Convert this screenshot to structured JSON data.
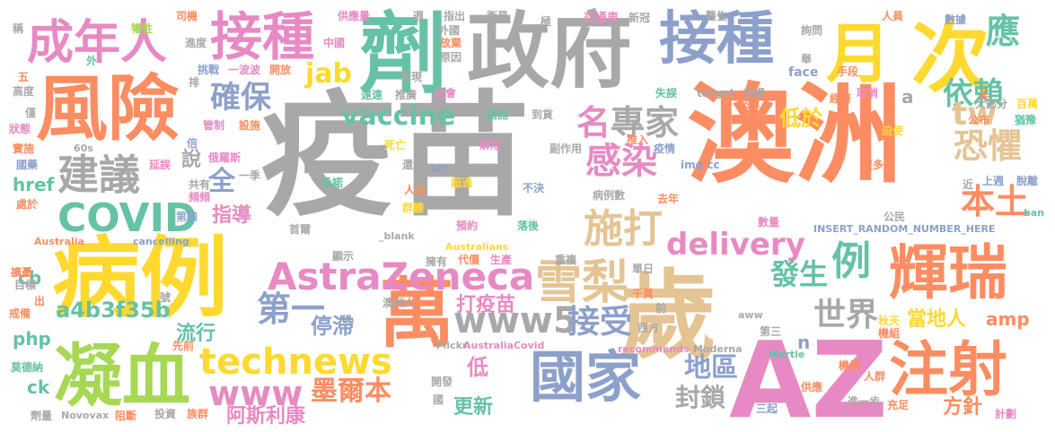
{
  "words": [
    {
      "text": "疫苗",
      "color": "#a8a8a8",
      "vertical": false
    },
    {
      "text": "澳洲",
      "color": "#fc8d62",
      "vertical": false
    },
    {
      "text": "政府",
      "color": "#a8a8a8",
      "vertical": false
    },
    {
      "text": "AZ",
      "color": "#e78ac3",
      "vertical": false
    },
    {
      "text": "病例",
      "color": "#ffd92f",
      "vertical": false
    },
    {
      "text": "風險",
      "color": "#fc8d62",
      "vertical": false
    },
    {
      "text": "歲",
      "color": "#e5c494",
      "vertical": false
    },
    {
      "text": "劑",
      "color": "#66c2a5",
      "vertical": false
    },
    {
      "text": "接種",
      "color": "#e78ac3",
      "vertical": false
    },
    {
      "text": "接種",
      "color": "#8da0cb",
      "vertical": false
    },
    {
      "text": "凝血",
      "color": "#a6d854",
      "vertical": false
    },
    {
      "text": "萬",
      "color": "#fc8d62",
      "vertical": false
    },
    {
      "text": "輝瑞",
      "color": "#fc8d62",
      "vertical": false
    },
    {
      "text": "次",
      "color": "#ffd92f",
      "vertical": false
    },
    {
      "text": "月",
      "color": "#ffd92f",
      "vertical": false
    },
    {
      "text": "國家",
      "color": "#8da0cb",
      "vertical": false
    },
    {
      "text": "注射",
      "color": "#fc8d62",
      "vertical": false
    },
    {
      "text": "成年人",
      "color": "#e78ac3",
      "vertical": false
    },
    {
      "text": "AstraZeneca",
      "color": "#e78ac3",
      "vertical": false
    },
    {
      "text": "雪梨",
      "color": "#e5c494",
      "vertical": false
    },
    {
      "text": "COVID",
      "color": "#66c2a5",
      "vertical": false
    },
    {
      "text": "建議",
      "color": "#a8a8a8",
      "vertical": false
    },
    {
      "text": "施打",
      "color": "#e5c494",
      "vertical": false
    },
    {
      "text": "technews",
      "color": "#ffd92f",
      "vertical": false
    },
    {
      "text": "www5",
      "color": "#a8a8a8",
      "vertical": false
    },
    {
      "text": "delivery",
      "color": "#e78ac3",
      "vertical": false
    },
    {
      "text": "www",
      "color": "#e78ac3",
      "vertical": false
    },
    {
      "text": "確保",
      "color": "#8da0cb",
      "vertical": false
    },
    {
      "text": "vaccine",
      "color": "#66c2a5",
      "vertical": false
    },
    {
      "text": "感染",
      "color": "#e78ac3",
      "vertical": false
    },
    {
      "text": "名",
      "color": "#e78ac3",
      "vertical": false
    },
    {
      "text": "專家",
      "color": "#a8a8a8",
      "vertical": false
    },
    {
      "text": "依賴",
      "color": "#66c2a5",
      "vertical": false
    },
    {
      "text": "應",
      "color": "#66c2a5",
      "vertical": false
    },
    {
      "text": "tw",
      "color": "#e5c494",
      "vertical": false
    },
    {
      "text": "恐懼",
      "color": "#e5c494",
      "vertical": false
    },
    {
      "text": "本土",
      "color": "#fc8d62",
      "vertical": false
    },
    {
      "text": "例",
      "color": "#66c2a5",
      "vertical": false
    },
    {
      "text": "發生",
      "color": "#66c2a5",
      "vertical": false
    },
    {
      "text": "第一",
      "color": "#8da0cb",
      "vertical": false
    },
    {
      "text": "接受",
      "color": "#8da0cb",
      "vertical": false
    },
    {
      "text": "世界",
      "color": "#a8a8a8",
      "vertical": false
    },
    {
      "text": "停滯",
      "color": "#8da0cb",
      "vertical": false
    },
    {
      "text": "墨爾本",
      "color": "#fc8d62",
      "vertical": false
    },
    {
      "text": "地區",
      "color": "#8da0cb",
      "vertical": false
    },
    {
      "text": "封鎖",
      "color": "#a8a8a8",
      "vertical": false
    },
    {
      "text": "jab",
      "color": "#ffd92f",
      "vertical": false
    },
    {
      "text": "全",
      "color": "#8da0cb",
      "vertical": false
    },
    {
      "text": "說",
      "color": "#a8a8a8",
      "vertical": false
    },
    {
      "text": "指導",
      "color": "#e78ac3",
      "vertical": false
    },
    {
      "text": "低於",
      "color": "#ffd92f",
      "vertical": false
    },
    {
      "text": "當地人",
      "color": "#ffd92f",
      "vertical": false
    },
    {
      "text": "a4b3f35b",
      "color": "#66c2a5",
      "vertical": false
    },
    {
      "text": "流行",
      "color": "#66c2a5",
      "vertical": false
    },
    {
      "text": "打疫苗",
      "color": "#e78ac3",
      "vertical": false
    },
    {
      "text": "阿斯利康",
      "color": "#e78ac3",
      "vertical": false
    },
    {
      "text": "更新",
      "color": "#66c2a5",
      "vertical": false
    },
    {
      "text": "低",
      "color": "#e78ac3",
      "vertical": false
    },
    {
      "text": "方針",
      "color": "#fc8d62",
      "vertical": false
    },
    {
      "text": "href",
      "color": "#66c2a5",
      "vertical": false
    },
    {
      "text": "cb",
      "color": "#66c2a5",
      "vertical": false
    },
    {
      "text": "php",
      "color": "#66c2a5",
      "vertical": false
    },
    {
      "text": "ck",
      "color": "#66c2a5",
      "vertical": false
    },
    {
      "text": "amp",
      "color": "#fc8d62",
      "vertical": false
    },
    {
      "text": "n",
      "color": "#8da0cb",
      "vertical": false
    },
    {
      "text": "a",
      "color": "#a8a8a8",
      "vertical": false
    },
    {
      "text": "INSERT_RANDOM_NUMBER_HERE",
      "color": "#8da0cb",
      "vertical": false
    },
    {
      "text": "_blank",
      "color": "#a8a8a8",
      "vertical": false
    },
    {
      "text": "Australians",
      "color": "#ffd92f",
      "vertical": false
    },
    {
      "text": "Australia",
      "color": "#fc8d62",
      "vertical": false
    },
    {
      "text": "cancelling",
      "color": "#8da0cb",
      "vertical": false
    },
    {
      "text": "AustraliaCovid",
      "color": "#e78ac3",
      "vertical": false
    },
    {
      "text": "recommends",
      "color": "#e78ac3",
      "vertical": false
    },
    {
      "text": "Moderna",
      "color": "#a8a8a8",
      "vertical": false
    },
    {
      "text": "Novovax",
      "color": "#a8a8a8",
      "vertical": false
    },
    {
      "text": "Mertie",
      "color": "#66c2a5",
      "vertical": false
    },
    {
      "text": "Flickr",
      "color": "#a8a8a8",
      "vertical": false
    },
    {
      "text": "face",
      "color": "#8da0cb",
      "vertical": false
    },
    {
      "text": "target",
      "color": "#a8a8a8",
      "vertical": false
    },
    {
      "text": "img cc",
      "color": "#8da0cb",
      "vertical": false
    },
    {
      "text": "src",
      "color": "#8da0cb",
      "vertical": false
    },
    {
      "text": "60s",
      "color": "#a8a8a8",
      "vertical": false
    },
    {
      "text": "aww",
      "color": "#a8a8a8",
      "vertical": false
    },
    {
      "text": "ban",
      "color": "#66c2a5",
      "vertical": false
    },
    {
      "text": "數據",
      "color": "#8da0cb",
      "vertical": false
    },
    {
      "text": "人員",
      "color": "#fc8d62",
      "vertical": false
    },
    {
      "text": "醫生",
      "color": "#a8a8a8",
      "vertical": false
    },
    {
      "text": "新冠",
      "color": "#a8a8a8",
      "vertical": false
    },
    {
      "text": "交通車",
      "color": "#e78ac3",
      "vertical": false
    },
    {
      "text": "衛星",
      "color": "#a8a8a8",
      "vertical": false
    },
    {
      "text": "指出",
      "color": "#a8a8a8",
      "vertical": false
    },
    {
      "text": "供應量",
      "color": "#e78ac3",
      "vertical": false
    },
    {
      "text": "司機",
      "color": "#fc8d62",
      "vertical": false
    },
    {
      "text": "犧牲",
      "color": "#a6d854",
      "vertical": false
    },
    {
      "text": "進度",
      "color": "#a8a8a8",
      "vertical": false
    },
    {
      "text": "挑戰",
      "color": "#8da0cb",
      "vertical": false
    },
    {
      "text": "一波波",
      "color": "#e78ac3",
      "vertical": false
    },
    {
      "text": "開放",
      "color": "#fc8d62",
      "vertical": false
    },
    {
      "text": "發現",
      "color": "#a8a8a8",
      "vertical": false
    },
    {
      "text": "放棄",
      "color": "#fc8d62",
      "vertical": false
    },
    {
      "text": "原因",
      "color": "#a8a8a8",
      "vertical": false
    },
    {
      "text": "社會",
      "color": "#e78ac3",
      "vertical": false
    },
    {
      "text": "推廣",
      "color": "#a8a8a8",
      "vertical": false
    },
    {
      "text": "遠遠",
      "color": "#66c2a5",
      "vertical": false
    },
    {
      "text": "設施",
      "color": "#fc8d62",
      "vertical": false
    },
    {
      "text": "管制",
      "color": "#e78ac3",
      "vertical": false
    },
    {
      "text": "措施",
      "color": "#66c2a5",
      "vertical": false
    },
    {
      "text": "到貨",
      "color": "#a8a8a8",
      "vertical": false
    },
    {
      "text": "死亡",
      "color": "#ffd92f",
      "vertical": false
    },
    {
      "text": "解除",
      "color": "#e78ac3",
      "vertical": false
    },
    {
      "text": "副作用",
      "color": "#a8a8a8",
      "vertical": false
    },
    {
      "text": "推入",
      "color": "#fc8d62",
      "vertical": false
    },
    {
      "text": "疫情",
      "color": "#8da0cb",
      "vertical": false
    },
    {
      "text": "失誤",
      "color": "#66c2a5",
      "vertical": false
    },
    {
      "text": "前提",
      "color": "#a8a8a8",
      "vertical": false
    },
    {
      "text": "經濟",
      "color": "#fc8d62",
      "vertical": false
    },
    {
      "text": "取消",
      "color": "#e78ac3",
      "vertical": false
    },
    {
      "text": "手段",
      "color": "#fc8d62",
      "vertical": false
    },
    {
      "text": "大部分",
      "color": "#a8a8a8",
      "vertical": false
    },
    {
      "text": "百萬",
      "color": "#ffd92f",
      "vertical": false
    },
    {
      "text": "公布",
      "color": "#fc8d62",
      "vertical": false
    },
    {
      "text": "猶豫",
      "color": "#66c2a5",
      "vertical": false
    },
    {
      "text": "迫使",
      "color": "#ffd92f",
      "vertical": false
    },
    {
      "text": "來源",
      "color": "#fc8d62",
      "vertical": false
    },
    {
      "text": "更多",
      "color": "#fc8d62",
      "vertical": false
    },
    {
      "text": "上週",
      "color": "#8da0cb",
      "vertical": false
    },
    {
      "text": "脫離",
      "color": "#8da0cb",
      "vertical": false
    },
    {
      "text": "數量",
      "color": "#e78ac3",
      "vertical": false
    },
    {
      "text": "公民",
      "color": "#a8a8a8",
      "vertical": false
    },
    {
      "text": "秋天",
      "color": "#ffd92f",
      "vertical": false
    },
    {
      "text": "機組",
      "color": "#fc8d62",
      "vertical": false
    },
    {
      "text": "機構",
      "color": "#fc8d62",
      "vertical": false
    },
    {
      "text": "人群",
      "color": "#fc8d62",
      "vertical": false
    },
    {
      "text": "供應",
      "color": "#fc8d62",
      "vertical": false
    },
    {
      "text": "進一步",
      "color": "#a8a8a8",
      "vertical": false
    },
    {
      "text": "充足",
      "color": "#fc8d62",
      "vertical": false
    },
    {
      "text": "計劃",
      "color": "#e78ac3",
      "vertical": false
    },
    {
      "text": "三起",
      "color": "#8da0cb",
      "vertical": false
    },
    {
      "text": "第三",
      "color": "#a8a8a8",
      "vertical": false
    },
    {
      "text": "西方",
      "color": "#a8a8a8",
      "vertical": false
    },
    {
      "text": "千萬",
      "color": "#fc8d62",
      "vertical": false
    },
    {
      "text": "單日",
      "color": "#a8a8a8",
      "vertical": false
    },
    {
      "text": "重複",
      "color": "#a8a8a8",
      "vertical": false
    },
    {
      "text": "生產",
      "color": "#e78ac3",
      "vertical": false
    },
    {
      "text": "代價",
      "color": "#fc8d62",
      "vertical": false
    },
    {
      "text": "擁有",
      "color": "#a8a8a8",
      "vertical": false
    },
    {
      "text": "澳洲人",
      "color": "#a8a8a8",
      "vertical": false
    },
    {
      "text": "顯示",
      "color": "#a8a8a8",
      "vertical": false
    },
    {
      "text": "首爾",
      "color": "#a8a8a8",
      "vertical": false
    },
    {
      "text": "預約",
      "color": "#e78ac3",
      "vertical": false
    },
    {
      "text": "落後",
      "color": "#66c2a5",
      "vertical": false
    },
    {
      "text": "群體",
      "color": "#ffd92f",
      "vertical": false
    },
    {
      "text": "超過",
      "color": "#ffd92f",
      "vertical": false
    },
    {
      "text": "不決",
      "color": "#8da0cb",
      "vertical": false
    },
    {
      "text": "承諾",
      "color": "#66c2a5",
      "vertical": false
    },
    {
      "text": "人造",
      "color": "#fc8d62",
      "vertical": false
    },
    {
      "text": "還境",
      "color": "#a8a8a8",
      "vertical": false
    },
    {
      "text": "病例數",
      "color": "#a8a8a8",
      "vertical": false
    },
    {
      "text": "去年",
      "color": "#fc8d62",
      "vertical": false
    },
    {
      "text": "共有",
      "color": "#a8a8a8",
      "vertical": false
    },
    {
      "text": "頻頻",
      "color": "#e78ac3",
      "vertical": false
    },
    {
      "text": "一季",
      "color": "#a8a8a8",
      "vertical": false
    },
    {
      "text": "俄羅斯",
      "color": "#e78ac3",
      "vertical": false
    },
    {
      "text": "第四",
      "color": "#8da0cb",
      "vertical": false
    },
    {
      "text": "延誤",
      "color": "#e78ac3",
      "vertical": false
    },
    {
      "text": "國藥",
      "color": "#8da0cb",
      "vertical": false
    },
    {
      "text": "實施",
      "color": "#fc8d62",
      "vertical": false
    },
    {
      "text": "狀態",
      "color": "#e78ac3",
      "vertical": false
    },
    {
      "text": "僅",
      "color": "#a8a8a8",
      "vertical": false
    },
    {
      "text": "高度",
      "color": "#a8a8a8",
      "vertical": false
    },
    {
      "text": "五",
      "color": "#fc8d62",
      "vertical": false
    },
    {
      "text": "外",
      "color": "#66c2a5",
      "vertical": false
    },
    {
      "text": "中國",
      "color": "#e78ac3",
      "vertical": false
    },
    {
      "text": "外國",
      "color": "#a8a8a8",
      "vertical": false
    },
    {
      "text": "週",
      "color": "#a8a8a8",
      "vertical": false
    },
    {
      "text": "極",
      "color": "#a8a8a8",
      "vertical": false
    },
    {
      "text": "稱",
      "color": "#a8a8a8",
      "vertical": false
    },
    {
      "text": "詢問",
      "color": "#a8a8a8",
      "vertical": false
    },
    {
      "text": "舉",
      "color": "#a8a8a8",
      "vertical": false
    },
    {
      "text": "年",
      "color": "#fc8d62",
      "vertical": false
    },
    {
      "text": "近",
      "color": "#a8a8a8",
      "vertical": false
    },
    {
      "text": "處於",
      "color": "#fc8d62",
      "vertical": false
    },
    {
      "text": "擴憂",
      "color": "#fc8d62",
      "vertical": false
    },
    {
      "text": "目標",
      "color": "#a8a8a8",
      "vertical": false
    },
    {
      "text": "戒備",
      "color": "#fc8d62",
      "vertical": false
    },
    {
      "text": "出",
      "color": "#fc8d62",
      "vertical": false
    },
    {
      "text": "莫德納",
      "color": "#66c2a5",
      "vertical": false
    },
    {
      "text": "劑量",
      "color": "#a8a8a8",
      "vertical": false
    },
    {
      "text": "阻斷",
      "color": "#fc8d62",
      "vertical": false
    },
    {
      "text": "投資",
      "color": "#a8a8a8",
      "vertical": false
    },
    {
      "text": "族群",
      "color": "#fc8d62",
      "vertical": false
    },
    {
      "text": "開發",
      "color": "#a8a8a8",
      "vertical": false
    },
    {
      "text": "國",
      "color": "#a8a8a8",
      "vertical": false
    },
    {
      "text": "先前",
      "color": "#fc8d62",
      "vertical": false
    },
    {
      "text": "號",
      "color": "#a8a8a8",
      "vertical": false
    },
    {
      "text": "倍",
      "color": "#8da0cb",
      "vertical": false
    },
    {
      "text": "排",
      "color": "#a8a8a8",
      "vertical": false
    },
    {
      "text": "前",
      "color": "#a8a8a8",
      "vertical": false
    }
  ]
}
